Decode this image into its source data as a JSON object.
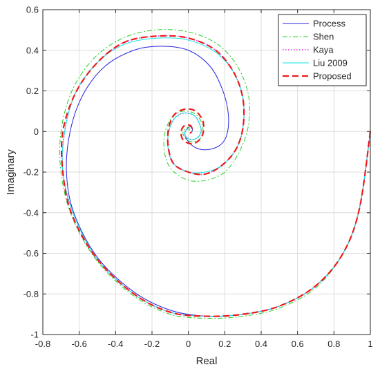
{
  "chart_data": {
    "type": "line",
    "title": "",
    "xlabel": "Real",
    "ylabel": "Imaginary",
    "xlim": [
      -0.8,
      1.0
    ],
    "ylim": [
      -1.0,
      0.6
    ],
    "xticks": [
      "-0.8",
      "-0.6",
      "-0.4",
      "-0.2",
      "0",
      "0.2",
      "0.4",
      "0.6",
      "0.8",
      "1"
    ],
    "yticks": [
      "-1",
      "-0.8",
      "-0.6",
      "-0.4",
      "-0.2",
      "0",
      "0.2",
      "0.4",
      "0.6"
    ],
    "grid": true,
    "legend_position": "top-right",
    "series": [
      {
        "name": "Process",
        "color": "#2323e0",
        "style": "solid",
        "points": [
          [
            1.0,
            0.0
          ],
          [
            0.94,
            -0.38
          ],
          [
            0.85,
            -0.6
          ],
          [
            0.7,
            -0.76
          ],
          [
            0.5,
            -0.86
          ],
          [
            0.3,
            -0.9
          ],
          [
            0.1,
            -0.91
          ],
          [
            -0.1,
            -0.88
          ],
          [
            -0.3,
            -0.79
          ],
          [
            -0.5,
            -0.62
          ],
          [
            -0.63,
            -0.4
          ],
          [
            -0.67,
            -0.2
          ],
          [
            -0.65,
            0.0
          ],
          [
            -0.58,
            0.18
          ],
          [
            -0.46,
            0.32
          ],
          [
            -0.3,
            0.4
          ],
          [
            -0.15,
            0.42
          ],
          [
            0.0,
            0.4
          ],
          [
            0.12,
            0.32
          ],
          [
            0.19,
            0.2
          ],
          [
            0.22,
            0.08
          ],
          [
            0.21,
            -0.02
          ],
          [
            0.17,
            -0.07
          ],
          [
            0.1,
            -0.09
          ],
          [
            0.04,
            -0.08
          ],
          [
            0.0,
            -0.05
          ],
          [
            -0.02,
            -0.01
          ],
          [
            0.0,
            0.02
          ],
          [
            0.02,
            0.02
          ],
          [
            0.02,
            0.0
          ],
          [
            0.01,
            -0.01
          ]
        ]
      },
      {
        "name": "Shen",
        "color": "#22d022",
        "style": "dashdot",
        "points": [
          [
            1.0,
            0.0
          ],
          [
            0.94,
            -0.38
          ],
          [
            0.85,
            -0.6
          ],
          [
            0.7,
            -0.77
          ],
          [
            0.5,
            -0.87
          ],
          [
            0.3,
            -0.91
          ],
          [
            0.1,
            -0.92
          ],
          [
            -0.1,
            -0.9
          ],
          [
            -0.3,
            -0.81
          ],
          [
            -0.5,
            -0.64
          ],
          [
            -0.64,
            -0.42
          ],
          [
            -0.7,
            -0.2
          ],
          [
            -0.7,
            0.0
          ],
          [
            -0.64,
            0.2
          ],
          [
            -0.52,
            0.36
          ],
          [
            -0.36,
            0.46
          ],
          [
            -0.18,
            0.5
          ],
          [
            0.0,
            0.49
          ],
          [
            0.16,
            0.43
          ],
          [
            0.27,
            0.32
          ],
          [
            0.33,
            0.18
          ],
          [
            0.33,
            0.03
          ],
          [
            0.28,
            -0.1
          ],
          [
            0.2,
            -0.2
          ],
          [
            0.1,
            -0.24
          ],
          [
            0.0,
            -0.24
          ],
          [
            -0.09,
            -0.19
          ],
          [
            -0.13,
            -0.11
          ],
          [
            -0.13,
            -0.01
          ],
          [
            -0.09,
            0.07
          ],
          [
            -0.03,
            0.1
          ],
          [
            0.03,
            0.09
          ],
          [
            0.07,
            0.05
          ],
          [
            0.08,
            0.0
          ],
          [
            0.06,
            -0.04
          ],
          [
            0.02,
            -0.05
          ],
          [
            -0.01,
            -0.04
          ],
          [
            -0.03,
            -0.01
          ],
          [
            -0.02,
            0.01
          ],
          [
            0.0,
            0.02
          ],
          [
            0.01,
            0.0
          ]
        ]
      },
      {
        "name": "Kaya",
        "color": "#e020e0",
        "style": "dotted",
        "points": [
          [
            1.0,
            0.0
          ],
          [
            0.94,
            -0.38
          ],
          [
            0.85,
            -0.6
          ],
          [
            0.7,
            -0.76
          ],
          [
            0.5,
            -0.86
          ],
          [
            0.3,
            -0.9
          ],
          [
            0.1,
            -0.91
          ],
          [
            -0.1,
            -0.89
          ],
          [
            -0.3,
            -0.8
          ],
          [
            -0.5,
            -0.63
          ],
          [
            -0.63,
            -0.41
          ],
          [
            -0.69,
            -0.2
          ],
          [
            -0.68,
            0.0
          ],
          [
            -0.62,
            0.19
          ],
          [
            -0.5,
            0.34
          ],
          [
            -0.35,
            0.44
          ],
          [
            -0.17,
            0.47
          ],
          [
            0.0,
            0.46
          ],
          [
            0.15,
            0.4
          ],
          [
            0.25,
            0.29
          ],
          [
            0.3,
            0.16
          ],
          [
            0.3,
            0.02
          ],
          [
            0.26,
            -0.09
          ],
          [
            0.18,
            -0.17
          ],
          [
            0.09,
            -0.21
          ],
          [
            0.0,
            -0.2
          ],
          [
            -0.08,
            -0.16
          ],
          [
            -0.11,
            -0.09
          ],
          [
            -0.11,
            -0.01
          ],
          [
            -0.08,
            0.06
          ],
          [
            -0.03,
            0.09
          ],
          [
            0.03,
            0.08
          ],
          [
            0.06,
            0.04
          ],
          [
            0.07,
            0.0
          ],
          [
            0.05,
            -0.03
          ],
          [
            0.02,
            -0.04
          ],
          [
            -0.01,
            -0.03
          ],
          [
            -0.02,
            -0.01
          ],
          [
            -0.01,
            0.01
          ],
          [
            0.0,
            0.01
          ]
        ]
      },
      {
        "name": "Liu 2009",
        "color": "#11e5e5",
        "style": "solid",
        "points": [
          [
            1.0,
            0.0
          ],
          [
            0.94,
            -0.38
          ],
          [
            0.85,
            -0.6
          ],
          [
            0.7,
            -0.76
          ],
          [
            0.5,
            -0.86
          ],
          [
            0.3,
            -0.9
          ],
          [
            0.1,
            -0.91
          ],
          [
            -0.1,
            -0.89
          ],
          [
            -0.3,
            -0.8
          ],
          [
            -0.5,
            -0.63
          ],
          [
            -0.63,
            -0.41
          ],
          [
            -0.69,
            -0.2
          ],
          [
            -0.68,
            0.0
          ],
          [
            -0.62,
            0.19
          ],
          [
            -0.5,
            0.34
          ],
          [
            -0.35,
            0.43
          ],
          [
            -0.17,
            0.46
          ],
          [
            0.0,
            0.45
          ],
          [
            0.15,
            0.39
          ],
          [
            0.25,
            0.29
          ],
          [
            0.3,
            0.16
          ],
          [
            0.3,
            0.02
          ],
          [
            0.26,
            -0.09
          ],
          [
            0.18,
            -0.17
          ],
          [
            0.09,
            -0.2
          ],
          [
            0.0,
            -0.2
          ],
          [
            -0.08,
            -0.16
          ],
          [
            -0.11,
            -0.09
          ],
          [
            -0.11,
            -0.01
          ],
          [
            -0.08,
            0.06
          ],
          [
            -0.03,
            0.09
          ],
          [
            0.03,
            0.08
          ],
          [
            0.06,
            0.04
          ],
          [
            0.07,
            0.0
          ],
          [
            0.05,
            -0.03
          ],
          [
            0.02,
            -0.04
          ],
          [
            -0.01,
            -0.03
          ],
          [
            -0.02,
            -0.01
          ],
          [
            -0.01,
            0.01
          ],
          [
            0.0,
            0.01
          ]
        ]
      },
      {
        "name": "Proposed",
        "color": "#ee1a1a",
        "style": "dashed",
        "points": [
          [
            1.0,
            0.0
          ],
          [
            0.94,
            -0.38
          ],
          [
            0.85,
            -0.6
          ],
          [
            0.7,
            -0.76
          ],
          [
            0.5,
            -0.86
          ],
          [
            0.3,
            -0.9
          ],
          [
            0.1,
            -0.91
          ],
          [
            -0.1,
            -0.89
          ],
          [
            -0.3,
            -0.8
          ],
          [
            -0.5,
            -0.63
          ],
          [
            -0.64,
            -0.41
          ],
          [
            -0.69,
            -0.2
          ],
          [
            -0.69,
            0.0
          ],
          [
            -0.62,
            0.19
          ],
          [
            -0.5,
            0.34
          ],
          [
            -0.35,
            0.44
          ],
          [
            -0.17,
            0.47
          ],
          [
            0.0,
            0.46
          ],
          [
            0.15,
            0.4
          ],
          [
            0.25,
            0.29
          ],
          [
            0.3,
            0.16
          ],
          [
            0.3,
            0.02
          ],
          [
            0.26,
            -0.09
          ],
          [
            0.18,
            -0.17
          ],
          [
            0.09,
            -0.21
          ],
          [
            0.0,
            -0.2
          ],
          [
            -0.08,
            -0.16
          ],
          [
            -0.11,
            -0.08
          ],
          [
            -0.11,
            0.01
          ],
          [
            -0.08,
            0.08
          ],
          [
            -0.02,
            0.11
          ],
          [
            0.04,
            0.1
          ],
          [
            0.08,
            0.05
          ],
          [
            0.08,
            -0.01
          ],
          [
            0.05,
            -0.05
          ],
          [
            0.01,
            -0.06
          ],
          [
            -0.03,
            -0.04
          ],
          [
            -0.04,
            0.0
          ],
          [
            -0.02,
            0.03
          ],
          [
            0.01,
            0.03
          ],
          [
            0.02,
            0.01
          ],
          [
            0.01,
            -0.01
          ]
        ]
      }
    ]
  }
}
